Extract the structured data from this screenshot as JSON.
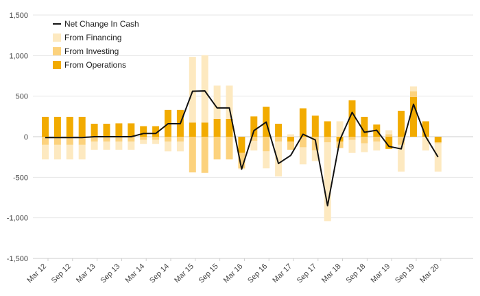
{
  "chart_data": {
    "type": "bar",
    "stacked": true,
    "title": "",
    "xlabel": "",
    "ylabel": "",
    "ylim": [
      -1500,
      1500
    ],
    "yticks": [
      -1500,
      -1000,
      -500,
      0,
      500,
      1000,
      1500
    ],
    "ytick_labels": [
      "-1,500",
      "-1,000",
      "-500",
      "0",
      "500",
      "1,000",
      "1,500"
    ],
    "grid": "horizontal",
    "legend_position": "top-left",
    "x": [
      "Mar 12",
      "Jun 12",
      "Sep 12",
      "Dec 12",
      "Mar 13",
      "Jun 13",
      "Sep 13",
      "Dec 13",
      "Mar 14",
      "Jun 14",
      "Sep 14",
      "Dec 14",
      "Mar 15",
      "Jun 15",
      "Sep 15",
      "Dec 15",
      "Mar 16",
      "Jun 16",
      "Sep 16",
      "Dec 16",
      "Mar 17",
      "Jun 17",
      "Sep 17",
      "Dec 17",
      "Mar 18",
      "Jun 18",
      "Sep 18",
      "Dec 18",
      "Mar 19",
      "Jun 19",
      "Sep 19",
      "Dec 19",
      "Mar 20"
    ],
    "tick_labels": [
      "Mar 12",
      "Sep 12",
      "Mar 13",
      "Sep 13",
      "Mar 14",
      "Sep 14",
      "Mar 15",
      "Sep 15",
      "Mar 16",
      "Sep 16",
      "Mar 17",
      "Sep 17",
      "Mar 18",
      "Sep 18",
      "Mar 19",
      "Sep 19",
      "Mar 20"
    ],
    "series": [
      {
        "name": "Net Change In Cash",
        "kind": "line",
        "color": "#111111",
        "values": [
          -10,
          -10,
          -10,
          -10,
          0,
          0,
          0,
          0,
          40,
          40,
          160,
          160,
          560,
          565,
          355,
          355,
          -400,
          75,
          180,
          -330,
          -230,
          30,
          -40,
          -850,
          -40,
          300,
          55,
          80,
          -120,
          -150,
          400,
          0,
          -250
        ]
      },
      {
        "name": "From Financing",
        "kind": "bar",
        "color": "#fde9c0",
        "values": [
          -180,
          -180,
          -180,
          -180,
          -100,
          -100,
          -100,
          -100,
          -50,
          -50,
          -120,
          -120,
          810,
          830,
          410,
          410,
          -10,
          -120,
          -210,
          -430,
          30,
          -210,
          -130,
          -970,
          190,
          -160,
          -110,
          -110,
          50,
          -330,
          60,
          -170,
          -350
        ]
      },
      {
        "name": "From Investing",
        "kind": "bar",
        "color": "#fcd27d",
        "values": [
          -100,
          -100,
          -100,
          -100,
          -60,
          -60,
          -60,
          -60,
          -40,
          -40,
          -60,
          -60,
          -440,
          -445,
          -280,
          -280,
          -190,
          -50,
          -180,
          -60,
          -100,
          -130,
          -170,
          -70,
          -80,
          -40,
          -80,
          -60,
          30,
          -100,
          70,
          0,
          -10
        ]
      },
      {
        "name": "From Operations",
        "kind": "bar",
        "color": "#f2ab00",
        "values": [
          245,
          245,
          245,
          245,
          160,
          160,
          165,
          165,
          130,
          130,
          330,
          330,
          175,
          175,
          220,
          220,
          -200,
          250,
          370,
          160,
          -60,
          350,
          260,
          190,
          -60,
          450,
          245,
          150,
          -150,
          320,
          490,
          190,
          -70
        ]
      }
    ]
  }
}
